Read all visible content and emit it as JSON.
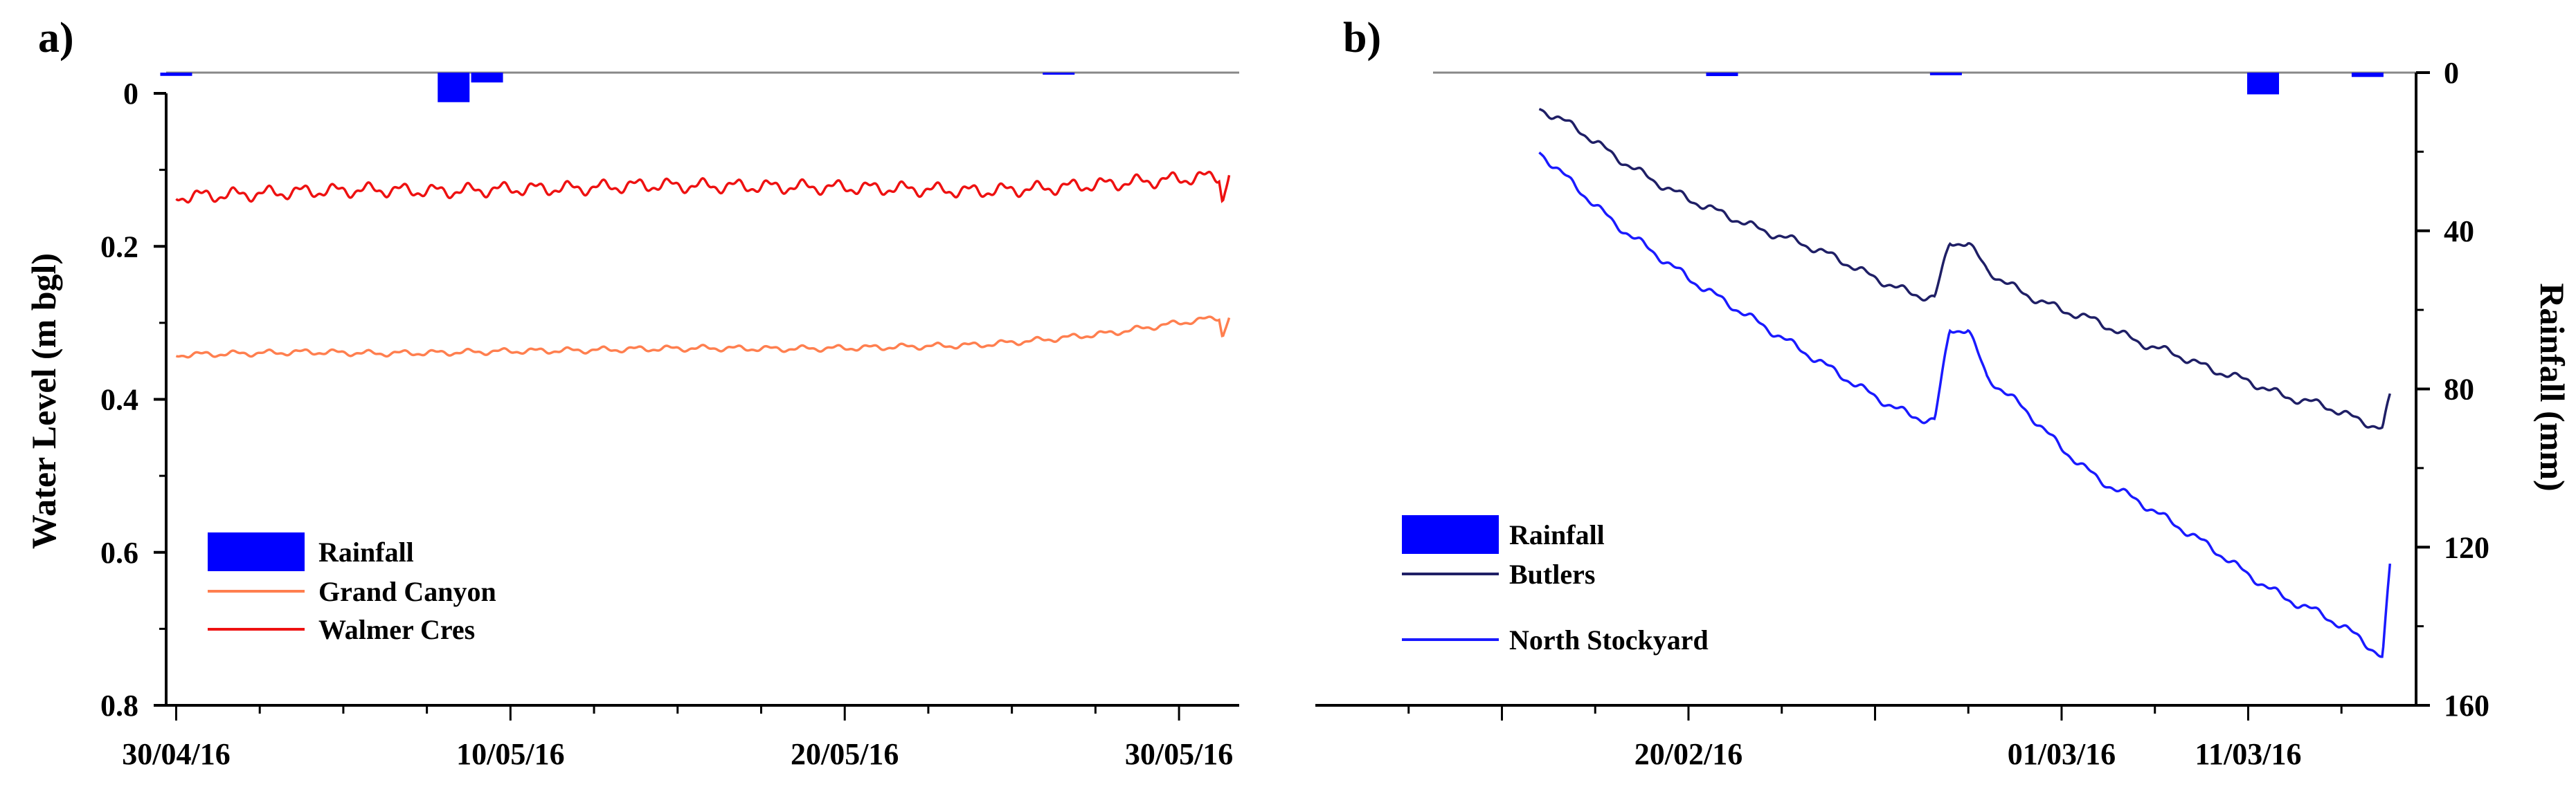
{
  "chart_data": [
    {
      "panel_label": "a)",
      "type": "line",
      "ylabel": "Water Level (m bgl)",
      "ylim": [
        0.8,
        0
      ],
      "y_ticks": [
        "0",
        "0.2",
        "0.4",
        "0.6",
        "0.8"
      ],
      "x_range_days": [
        -0.3,
        31.8
      ],
      "x_ticks": [
        {
          "day": 0,
          "label": "30/04/16"
        },
        {
          "day": 10,
          "label": "10/05/16"
        },
        {
          "day": 20,
          "label": "20/05/16"
        },
        {
          "day": 30,
          "label": "30/05/16"
        }
      ],
      "rainfall": {
        "name": "Rainfall",
        "color": "#0000ff",
        "unit": "mm",
        "bars": [
          {
            "day": 0.0,
            "mm": 0.5
          },
          {
            "day": 8.3,
            "mm": 4.5
          },
          {
            "day": 9.3,
            "mm": 1.5
          },
          {
            "day": 26.4,
            "mm": 0.3
          }
        ]
      },
      "series": [
        {
          "name": "Rainfall",
          "color": "#0000ff"
        },
        {
          "name": "Grand Canyon",
          "color": "#ff7f4f",
          "x": [
            0,
            2,
            4,
            6,
            8,
            10,
            12,
            14,
            16,
            18,
            20,
            22,
            24,
            26,
            28,
            30,
            31.2,
            31.3,
            31.5
          ],
          "values": [
            0.342,
            0.34,
            0.338,
            0.34,
            0.339,
            0.337,
            0.336,
            0.334,
            0.333,
            0.334,
            0.333,
            0.331,
            0.329,
            0.322,
            0.313,
            0.3,
            0.293,
            0.318,
            0.292
          ]
        },
        {
          "name": "Walmer Cres",
          "color": "#ee1111",
          "x": [
            0,
            2,
            4,
            6,
            8,
            10,
            12,
            14,
            16,
            18,
            20,
            22,
            24,
            26,
            28,
            30,
            31.2,
            31.3,
            31.5
          ],
          "values": [
            0.135,
            0.132,
            0.128,
            0.126,
            0.128,
            0.125,
            0.124,
            0.12,
            0.121,
            0.122,
            0.123,
            0.125,
            0.128,
            0.124,
            0.118,
            0.112,
            0.108,
            0.14,
            0.104
          ]
        }
      ]
    },
    {
      "panel_label": "b)",
      "type": "line",
      "ylabel": "Rainfall (mm)",
      "ylim": [
        160,
        0
      ],
      "y_ticks": [
        "0",
        "40",
        "80",
        "120",
        "160"
      ],
      "x_range_days": [
        -10,
        19.5
      ],
      "x_ticks": [
        {
          "day": -5,
          "label": ""
        },
        {
          "day": 0,
          "label": "20/02/16"
        },
        {
          "day": 5,
          "label": ""
        },
        {
          "day": 10,
          "label": "01/03/16"
        },
        {
          "day": 15,
          "label": "11/03/16"
        }
      ],
      "rainfall": {
        "name": "Rainfall",
        "color": "#0000ff",
        "unit": "mm",
        "bars": [
          {
            "day": 0.9,
            "mm": 0.4
          },
          {
            "day": 6.9,
            "mm": 0.3
          },
          {
            "day": 15.4,
            "mm": 2.5
          },
          {
            "day": 18.2,
            "mm": 0.5
          }
        ]
      },
      "series": [
        {
          "name": "Rainfall",
          "color": "#0000ff"
        },
        {
          "name": "Butlers",
          "color": "#1f1f66",
          "x": [
            -4,
            -3,
            -2,
            -1,
            0,
            1,
            2,
            3,
            4,
            5,
            6,
            6.6,
            7,
            7.5,
            8,
            9,
            10,
            11,
            12,
            13,
            14,
            15,
            16,
            17,
            18,
            18.6,
            18.8
          ],
          "values": [
            9,
            14,
            21,
            27,
            32,
            36,
            40,
            43,
            47,
            52,
            56,
            57,
            43,
            43,
            50,
            56,
            60,
            63,
            68,
            71,
            75,
            78,
            82,
            84,
            88,
            90,
            82
          ]
        },
        {
          "name": "North Stockyard",
          "color": "#1a1aff",
          "x": [
            -4,
            -3,
            -2,
            -1,
            0,
            1,
            2,
            3,
            4,
            5,
            6,
            6.6,
            7,
            7.5,
            8,
            9,
            10,
            11,
            12,
            13,
            14,
            15,
            16,
            17,
            18,
            18.6,
            18.8
          ],
          "values": [
            20,
            29,
            38,
            45,
            52,
            58,
            64,
            70,
            76,
            82,
            87,
            88,
            65,
            65,
            77,
            85,
            95,
            103,
            108,
            114,
            120,
            127,
            133,
            137,
            143,
            148,
            125
          ]
        }
      ]
    }
  ]
}
